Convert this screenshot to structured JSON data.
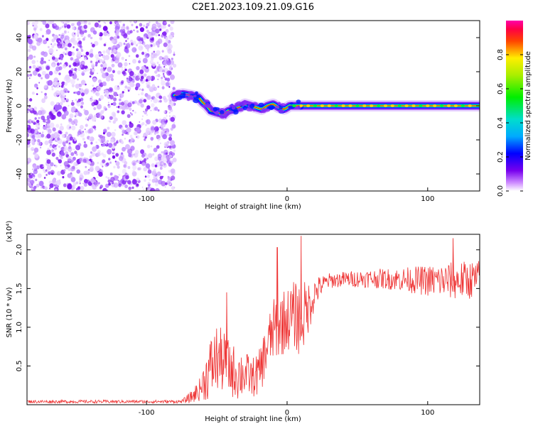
{
  "title": "C2E1.2023.109.21.09.G16",
  "chart_data": [
    {
      "type": "heatmap",
      "xlabel": "Height of straight line (km)",
      "ylabel": "Frequency (Hz)",
      "xlim": [
        -185,
        137
      ],
      "ylim": [
        -50,
        50
      ],
      "x_ticks": [
        -100,
        0,
        100
      ],
      "y_ticks": [
        -40,
        -20,
        0,
        20,
        40
      ],
      "noise_region_x": [
        -185,
        -80
      ],
      "ridge": {
        "x": [
          -80,
          -74,
          -68,
          -63,
          -60,
          -57,
          -54,
          -50,
          -45,
          -42,
          -38,
          -34,
          -30,
          -26,
          -22,
          -18,
          -14,
          -10,
          -6,
          -2,
          2,
          10,
          20,
          40,
          60,
          80,
          100,
          120,
          137
        ],
        "y": [
          6,
          7,
          6,
          5,
          2,
          0,
          -3,
          -4,
          -5,
          -3,
          -2,
          -1,
          1,
          0,
          -1,
          -2,
          0,
          1,
          -1,
          -2,
          0,
          0,
          0,
          0,
          0,
          0,
          0,
          0,
          0
        ]
      },
      "colorbar": {
        "label": "Normalized spectral amplitude",
        "range": [
          0.0,
          1.0
        ],
        "ticks": [
          0.0,
          0.2,
          0.4,
          0.6,
          0.8
        ],
        "tick_labels": [
          "0.0",
          "0.2",
          "0.4",
          "0.6",
          "0.8"
        ]
      }
    },
    {
      "type": "line",
      "xlabel": "Height of straight line (km)",
      "ylabel": "SNR (10 * v/v)",
      "y_multiplier": "(x10⁴)",
      "xlim": [
        -185,
        137
      ],
      "ylim": [
        0,
        2.2
      ],
      "x_ticks": [
        -100,
        0,
        100
      ],
      "y_ticks": [
        0.5,
        1.0,
        1.5,
        2.0
      ],
      "y_tick_labels": [
        "0.5",
        "1.0",
        "1.5",
        "2.0"
      ],
      "color": "#ee3333",
      "envelope": {
        "x": [
          -185,
          -75,
          -68,
          -62,
          -55,
          -50,
          -45,
          -40,
          -35,
          -30,
          -25,
          -20,
          -15,
          -10,
          -5,
          0,
          5,
          10,
          15,
          20,
          25,
          30,
          40,
          60,
          80,
          100,
          120,
          137
        ],
        "mean": [
          0.04,
          0.04,
          0.1,
          0.2,
          0.45,
          0.6,
          0.55,
          0.45,
          0.4,
          0.4,
          0.35,
          0.4,
          0.7,
          0.95,
          1.05,
          1.1,
          1.15,
          1.1,
          1.25,
          1.45,
          1.55,
          1.6,
          1.62,
          1.63,
          1.62,
          1.6,
          1.6,
          1.62
        ],
        "amp": [
          0.02,
          0.02,
          0.08,
          0.15,
          0.4,
          0.45,
          0.4,
          0.35,
          0.35,
          0.3,
          0.25,
          0.3,
          0.35,
          0.4,
          0.45,
          0.4,
          0.45,
          0.5,
          0.35,
          0.2,
          0.12,
          0.1,
          0.1,
          0.12,
          0.15,
          0.2,
          0.25,
          0.25
        ]
      },
      "peaks": [
        {
          "x": -43,
          "y": 1.45
        },
        {
          "x": -7,
          "y": 2.03
        },
        {
          "x": 10,
          "y": 2.18
        },
        {
          "x": 118,
          "y": 2.15
        }
      ]
    }
  ]
}
